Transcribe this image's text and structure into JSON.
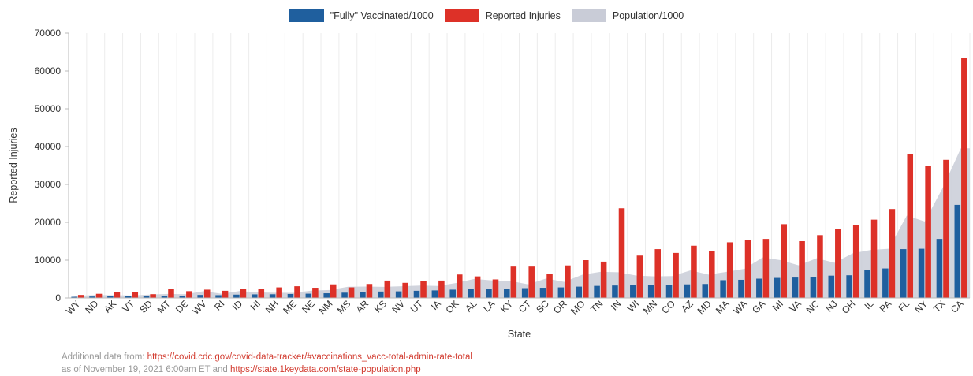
{
  "chart_data": {
    "type": "bar",
    "xlabel": "State",
    "ylabel": "Reported Injuries",
    "ylim": [
      0,
      70000
    ],
    "yticks": [
      "0",
      "10000",
      "20000",
      "30000",
      "40000",
      "50000",
      "60000",
      "70000"
    ],
    "legend_position": "top-center",
    "categories": [
      "WY",
      "ND",
      "AK",
      "VT",
      "SD",
      "MT",
      "DE",
      "WV",
      "RI",
      "ID",
      "HI",
      "NH",
      "ME",
      "NE",
      "NM",
      "MS",
      "AR",
      "KS",
      "NV",
      "UT",
      "IA",
      "OK",
      "AL",
      "LA",
      "KY",
      "CT",
      "SC",
      "OR",
      "MO",
      "TN",
      "IN",
      "WI",
      "MN",
      "CO",
      "AZ",
      "MD",
      "MA",
      "WA",
      "GA",
      "MI",
      "VA",
      "NC",
      "NJ",
      "OH",
      "IL",
      "PA",
      "FL",
      "NY",
      "TX",
      "CA"
    ],
    "series": [
      {
        "name": "\"Fully\" Vaccinated/1000",
        "type": "bar",
        "color": "#1f5f9e",
        "values": [
          300,
          380,
          420,
          420,
          470,
          560,
          620,
          800,
          740,
          880,
          950,
          980,
          1050,
          1130,
          1240,
          1400,
          1550,
          1700,
          1750,
          1900,
          2000,
          2200,
          2300,
          2400,
          2500,
          2600,
          2700,
          2800,
          3000,
          3200,
          3300,
          3400,
          3400,
          3500,
          3600,
          3700,
          4700,
          4800,
          5100,
          5300,
          5400,
          5500,
          5900,
          6000,
          7500,
          7800,
          12900,
          13000,
          15600,
          24600
        ]
      },
      {
        "name": "Reported Injuries",
        "type": "bar",
        "color": "#dd3128",
        "values": [
          800,
          1100,
          1600,
          1600,
          1000,
          2300,
          1800,
          2200,
          1900,
          2500,
          2400,
          2800,
          3100,
          2700,
          3600,
          2800,
          3700,
          4600,
          4000,
          4400,
          4600,
          6200,
          5700,
          4900,
          8300,
          8300,
          6400,
          8600,
          10000,
          9600,
          23700,
          11200,
          12900,
          11900,
          13800,
          12300,
          14700,
          15400,
          15600,
          19500,
          15000,
          16600,
          18300,
          19300,
          20700,
          23500,
          38000,
          34800,
          36500,
          63500
        ]
      },
      {
        "name": "Population/1000",
        "type": "area",
        "color": "#c9ccd7",
        "values": [
          580,
          770,
          730,
          640,
          890,
          1080,
          990,
          1790,
          1100,
          1840,
          1450,
          1380,
          1360,
          1960,
          2120,
          2960,
          3010,
          2940,
          3100,
          3270,
          3190,
          3960,
          5020,
          4630,
          4510,
          3600,
          5150,
          4240,
          6150,
          6910,
          6790,
          5900,
          5700,
          5770,
          7280,
          6180,
          6890,
          7700,
          10710,
          9990,
          8630,
          10490,
          9290,
          11800,
          12670,
          13000,
          21780,
          20200,
          29150,
          39540
        ]
      }
    ]
  },
  "footer": {
    "prefix": "Additional data from: ",
    "link1": "https://covid.cdc.gov/covid-data-tracker/#vaccinations_vacc-total-admin-rate-total",
    "line2_prefix": "as of November 19, 2021 6:00am ET and ",
    "link2": "https://state.1keydata.com/state-population.php"
  }
}
